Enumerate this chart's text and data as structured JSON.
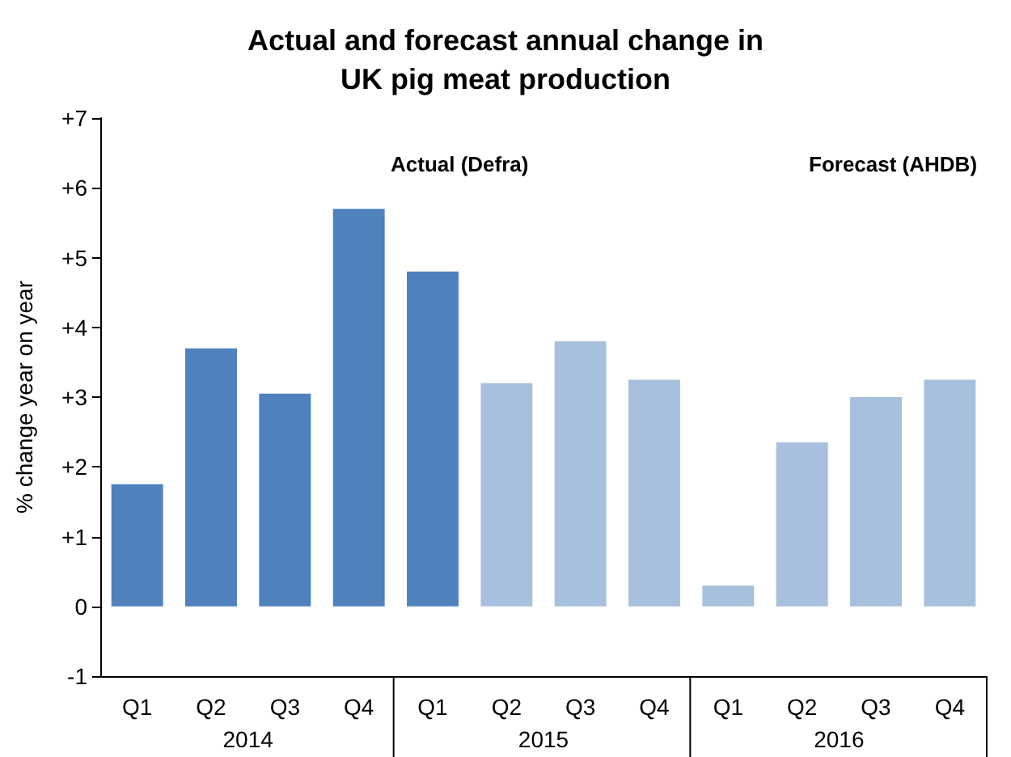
{
  "chart_data": {
    "type": "bar",
    "title": "Actual and forecast annual change in\nUK pig meat production",
    "ylabel": "% change year on year",
    "categories": [
      "Q1",
      "Q2",
      "Q3",
      "Q4",
      "Q1",
      "Q2",
      "Q3",
      "Q4",
      "Q1",
      "Q2",
      "Q3",
      "Q4"
    ],
    "values": [
      1.75,
      3.7,
      3.05,
      5.7,
      4.8,
      3.2,
      3.8,
      3.25,
      0.3,
      2.35,
      3.0,
      3.25
    ],
    "colors": [
      "#4f81bd",
      "#4f81bd",
      "#4f81bd",
      "#4f81bd",
      "#4f81bd",
      "#a7c0de",
      "#a7c0de",
      "#a7c0de",
      "#a7c0de",
      "#a7c0de",
      "#a7c0de",
      "#a7c0de"
    ],
    "ylim": [
      -1,
      7
    ],
    "yticks": [
      {
        "value": -1,
        "label": "-1"
      },
      {
        "value": 0,
        "label": "0"
      },
      {
        "value": 1,
        "label": "+1"
      },
      {
        "value": 2,
        "label": "+2"
      },
      {
        "value": 3,
        "label": "+3"
      },
      {
        "value": 4,
        "label": "+4"
      },
      {
        "value": 5,
        "label": "+5"
      },
      {
        "value": 6,
        "label": "+6"
      },
      {
        "value": 7,
        "label": "+7"
      }
    ],
    "annotations": [
      "Actual (Defra)",
      "Forecast (AHDB)",
      "2014",
      "2015",
      "2016"
    ],
    "grid": false
  }
}
